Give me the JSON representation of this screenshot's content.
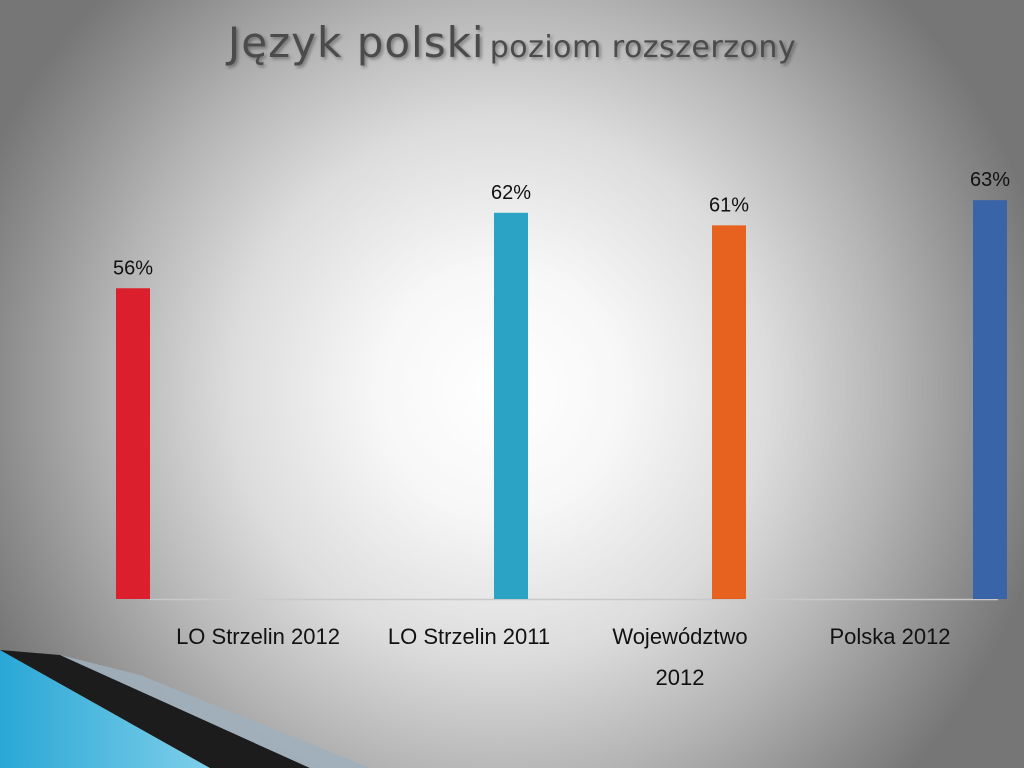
{
  "title": {
    "main": "Język polski",
    "sub": "poziom rozszerzony"
  },
  "chart_data": {
    "type": "bar",
    "categories": [
      [
        "LO Strzelin 2012"
      ],
      [
        "LO Strzelin 2011"
      ],
      [
        "Województwo",
        "2012"
      ],
      [
        "Polska 2012"
      ]
    ],
    "values": [
      56,
      62,
      61,
      63
    ],
    "labels": [
      "56%",
      "62%",
      "61%",
      "63%"
    ],
    "colors": [
      "#dc1f2c",
      "#2ba3c4",
      "#e8621f",
      "#3a64a8"
    ],
    "ylim": [
      31.3,
      65.4
    ],
    "grid": false,
    "legend": "none",
    "xlabel": "",
    "ylabel": ""
  }
}
